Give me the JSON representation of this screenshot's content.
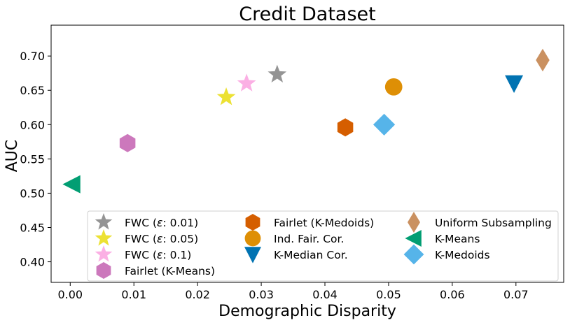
{
  "chart_data": {
    "type": "scatter",
    "title": "Credit Dataset",
    "xlabel": "Demographic Disparity",
    "ylabel": "AUC",
    "xlim": [
      -0.003,
      0.0775
    ],
    "ylim": [
      0.37,
      0.745
    ],
    "xticks": [
      0.0,
      0.01,
      0.02,
      0.03,
      0.04,
      0.05,
      0.06,
      0.07
    ],
    "xtick_labels": [
      "0.00",
      "0.01",
      "0.02",
      "0.03",
      "0.04",
      "0.05",
      "0.06",
      "0.07"
    ],
    "yticks": [
      0.4,
      0.45,
      0.5,
      0.55,
      0.6,
      0.65,
      0.7
    ],
    "ytick_labels": [
      "0.40",
      "0.45",
      "0.50",
      "0.55",
      "0.60",
      "0.65",
      "0.70"
    ],
    "grid": false,
    "legend_location": "bottom-right",
    "series": [
      {
        "name": "FWC (ε: 0.01)",
        "legend": [
          "FWC (",
          "ε",
          ": 0.01)"
        ],
        "x": 0.0325,
        "y": 0.673,
        "color": "#949494",
        "marker": "star"
      },
      {
        "name": "FWC (ε: 0.05)",
        "legend": [
          "FWC (",
          "ε",
          ": 0.05)"
        ],
        "x": 0.0245,
        "y": 0.64,
        "color": "#ece133",
        "marker": "star"
      },
      {
        "name": "FWC (ε: 0.1)",
        "legend": [
          "FWC (",
          "ε",
          ": 0.1)"
        ],
        "x": 0.0277,
        "y": 0.66,
        "color": "#fbafe4",
        "marker": "star"
      },
      {
        "name": "Fairlet (K-Means)",
        "x": 0.009,
        "y": 0.573,
        "color": "#cc78bc",
        "marker": "hexagon"
      },
      {
        "name": "Fairlet (K-Medoids)",
        "x": 0.0432,
        "y": 0.596,
        "color": "#d55e00",
        "marker": "hexagon"
      },
      {
        "name": "Ind. Fair. Cor.",
        "x": 0.0508,
        "y": 0.655,
        "color": "#de8f05",
        "marker": "circle"
      },
      {
        "name": "K-Median Cor.",
        "x": 0.0697,
        "y": 0.66,
        "color": "#0173b2",
        "marker": "triangle-down"
      },
      {
        "name": "Uniform Subsampling",
        "x": 0.0742,
        "y": 0.694,
        "color": "#ca9161",
        "marker": "thin-diamond"
      },
      {
        "name": "K-Means",
        "x": 0.0003,
        "y": 0.513,
        "color": "#029e73",
        "marker": "triangle-left"
      },
      {
        "name": "K-Medoids",
        "x": 0.0493,
        "y": 0.6,
        "color": "#56b4e9",
        "marker": "diamond"
      }
    ]
  }
}
